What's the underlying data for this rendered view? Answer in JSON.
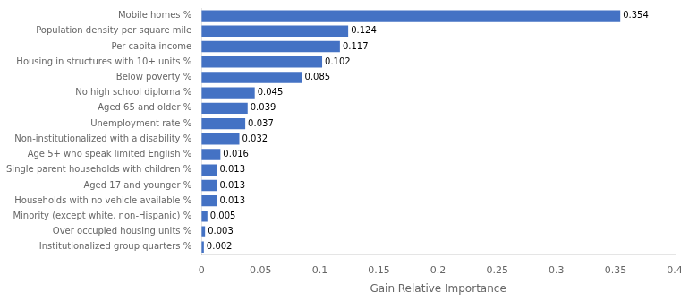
{
  "chart_data": {
    "type": "bar",
    "orientation": "horizontal",
    "categories": [
      "Institutionalized group quarters %",
      "Over occupied housing units %",
      "Minority (except white, non-Hispanic) %",
      "Households with no vehicle available %",
      "Aged 17 and younger %",
      "Single parent households with children %",
      "Age 5+ who speak limited English %",
      "Non-institutionalized with a disability %",
      "Unemployment rate %",
      "Aged 65 and older %",
      "No high school diploma %",
      "Below poverty %",
      "Housing in structures with 10+ units %",
      "Per capita income",
      "Population density per square mile",
      "Mobile homes %"
    ],
    "values": [
      0.002,
      0.003,
      0.005,
      0.013,
      0.013,
      0.013,
      0.016,
      0.032,
      0.037,
      0.039,
      0.045,
      0.085,
      0.102,
      0.117,
      0.124,
      0.354
    ],
    "color": "#4472c4",
    "xlabel": "Gain Relative Importance",
    "xlim": [
      0,
      0.4
    ],
    "xticks": [
      0,
      0.05,
      0.1,
      0.15,
      0.2,
      0.25,
      0.3,
      0.35,
      0.4
    ],
    "data_labels": true,
    "grid": false
  }
}
